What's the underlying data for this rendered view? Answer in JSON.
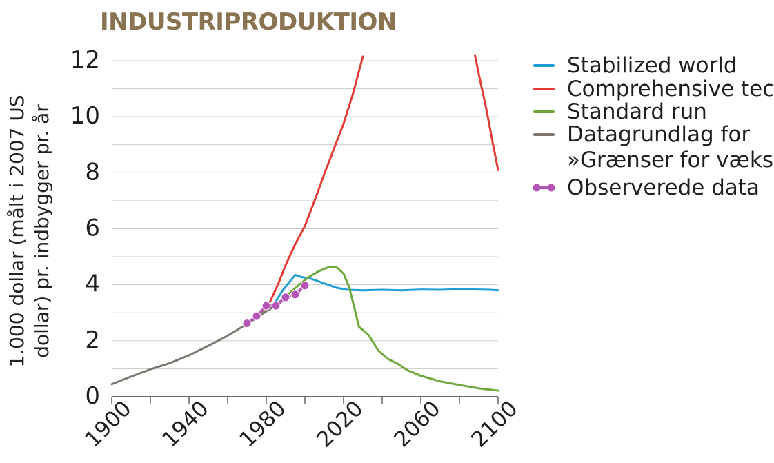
{
  "chart_data": {
    "type": "line",
    "title": "INDUSTRIPRODUKTION",
    "ylabel": "1.000 dollar (målt i 2007 US\ndollar) pr. indbygger pr. år",
    "xlabel": "",
    "xlim": [
      1900,
      2100
    ],
    "ylim": [
      0,
      12
    ],
    "grid": true,
    "legend_position": "right",
    "x_ticks": [
      "1900",
      "1940",
      "1980",
      "2020",
      "2060",
      "2100"
    ],
    "y_ticks": [
      "0",
      "2",
      "4",
      "6",
      "8",
      "10",
      "12"
    ],
    "series": [
      {
        "name": "Stabilized world",
        "color": "#1f9ed6",
        "points": [
          [
            1982,
            3.2
          ],
          [
            1985,
            3.4
          ],
          [
            1988,
            3.75
          ],
          [
            1992,
            4.1
          ],
          [
            1995,
            4.35
          ],
          [
            1998,
            4.28
          ],
          [
            2003,
            4.22
          ],
          [
            2010,
            4.05
          ],
          [
            2016,
            3.9
          ],
          [
            2022,
            3.82
          ],
          [
            2030,
            3.8
          ],
          [
            2040,
            3.82
          ],
          [
            2050,
            3.8
          ],
          [
            2060,
            3.83
          ],
          [
            2070,
            3.82
          ],
          [
            2080,
            3.84
          ],
          [
            2090,
            3.83
          ],
          [
            2096,
            3.82
          ],
          [
            2100,
            3.8
          ]
        ]
      },
      {
        "name": "Comprehensive tech",
        "color": "#e53a35",
        "segments": [
          [
            [
              1978,
              3.05
            ],
            [
              1982,
              3.4
            ],
            [
              1986,
              4.0
            ],
            [
              1990,
              4.7
            ],
            [
              1995,
              5.45
            ],
            [
              2000,
              6.1
            ],
            [
              2005,
              7.0
            ],
            [
              2010,
              7.95
            ],
            [
              2015,
              8.85
            ],
            [
              2020,
              9.75
            ],
            [
              2025,
              10.85
            ],
            [
              2030,
              12.15
            ]
          ],
          [
            [
              2088,
              12.2
            ],
            [
              2091,
              11.2
            ],
            [
              2094,
              10.25
            ],
            [
              2097,
              9.15
            ],
            [
              2100,
              8.1
            ]
          ]
        ]
      },
      {
        "name": "Standard run",
        "color": "#6ea83b",
        "points": [
          [
            1978,
            3.0
          ],
          [
            1983,
            3.2
          ],
          [
            1988,
            3.45
          ],
          [
            1992,
            3.7
          ],
          [
            1997,
            4.0
          ],
          [
            2002,
            4.28
          ],
          [
            2007,
            4.48
          ],
          [
            2012,
            4.62
          ],
          [
            2016,
            4.65
          ],
          [
            2020,
            4.4
          ],
          [
            2023,
            3.9
          ],
          [
            2028,
            2.5
          ],
          [
            2033,
            2.2
          ],
          [
            2038,
            1.65
          ],
          [
            2043,
            1.35
          ],
          [
            2048,
            1.18
          ],
          [
            2053,
            0.95
          ],
          [
            2060,
            0.75
          ],
          [
            2070,
            0.55
          ],
          [
            2080,
            0.42
          ],
          [
            2090,
            0.3
          ],
          [
            2100,
            0.22
          ]
        ]
      },
      {
        "name": "Datagrundlag for »Grænser for vækst«",
        "color": "#7d7770",
        "points": [
          [
            1900,
            0.45
          ],
          [
            1910,
            0.72
          ],
          [
            1920,
            0.98
          ],
          [
            1930,
            1.2
          ],
          [
            1940,
            1.48
          ],
          [
            1950,
            1.82
          ],
          [
            1960,
            2.18
          ],
          [
            1970,
            2.6
          ],
          [
            1975,
            2.82
          ],
          [
            1980,
            3.05
          ],
          [
            1983,
            3.18
          ]
        ]
      },
      {
        "name": "Observerede data",
        "color": "#b455b5",
        "marker": true,
        "points": [
          [
            1970,
            2.62
          ],
          [
            1975,
            2.88
          ],
          [
            1980,
            3.25
          ],
          [
            1985,
            3.25
          ],
          [
            1990,
            3.55
          ],
          [
            1995,
            3.65
          ],
          [
            2000,
            3.97
          ]
        ]
      }
    ],
    "legend": [
      {
        "lines": [
          "Stabilized world"
        ],
        "color": "#1f9ed6",
        "type": "line"
      },
      {
        "lines": [
          "Comprehensive tech"
        ],
        "color": "#e53a35",
        "type": "line"
      },
      {
        "lines": [
          "Standard run"
        ],
        "color": "#6ea83b",
        "type": "line"
      },
      {
        "lines": [
          "Datagrundlag for",
          "»Grænser for vækst«"
        ],
        "color": "#7d7770",
        "type": "line"
      },
      {
        "lines": [
          "Observerede data"
        ],
        "color": "#b455b5",
        "type": "marker-line"
      }
    ]
  }
}
